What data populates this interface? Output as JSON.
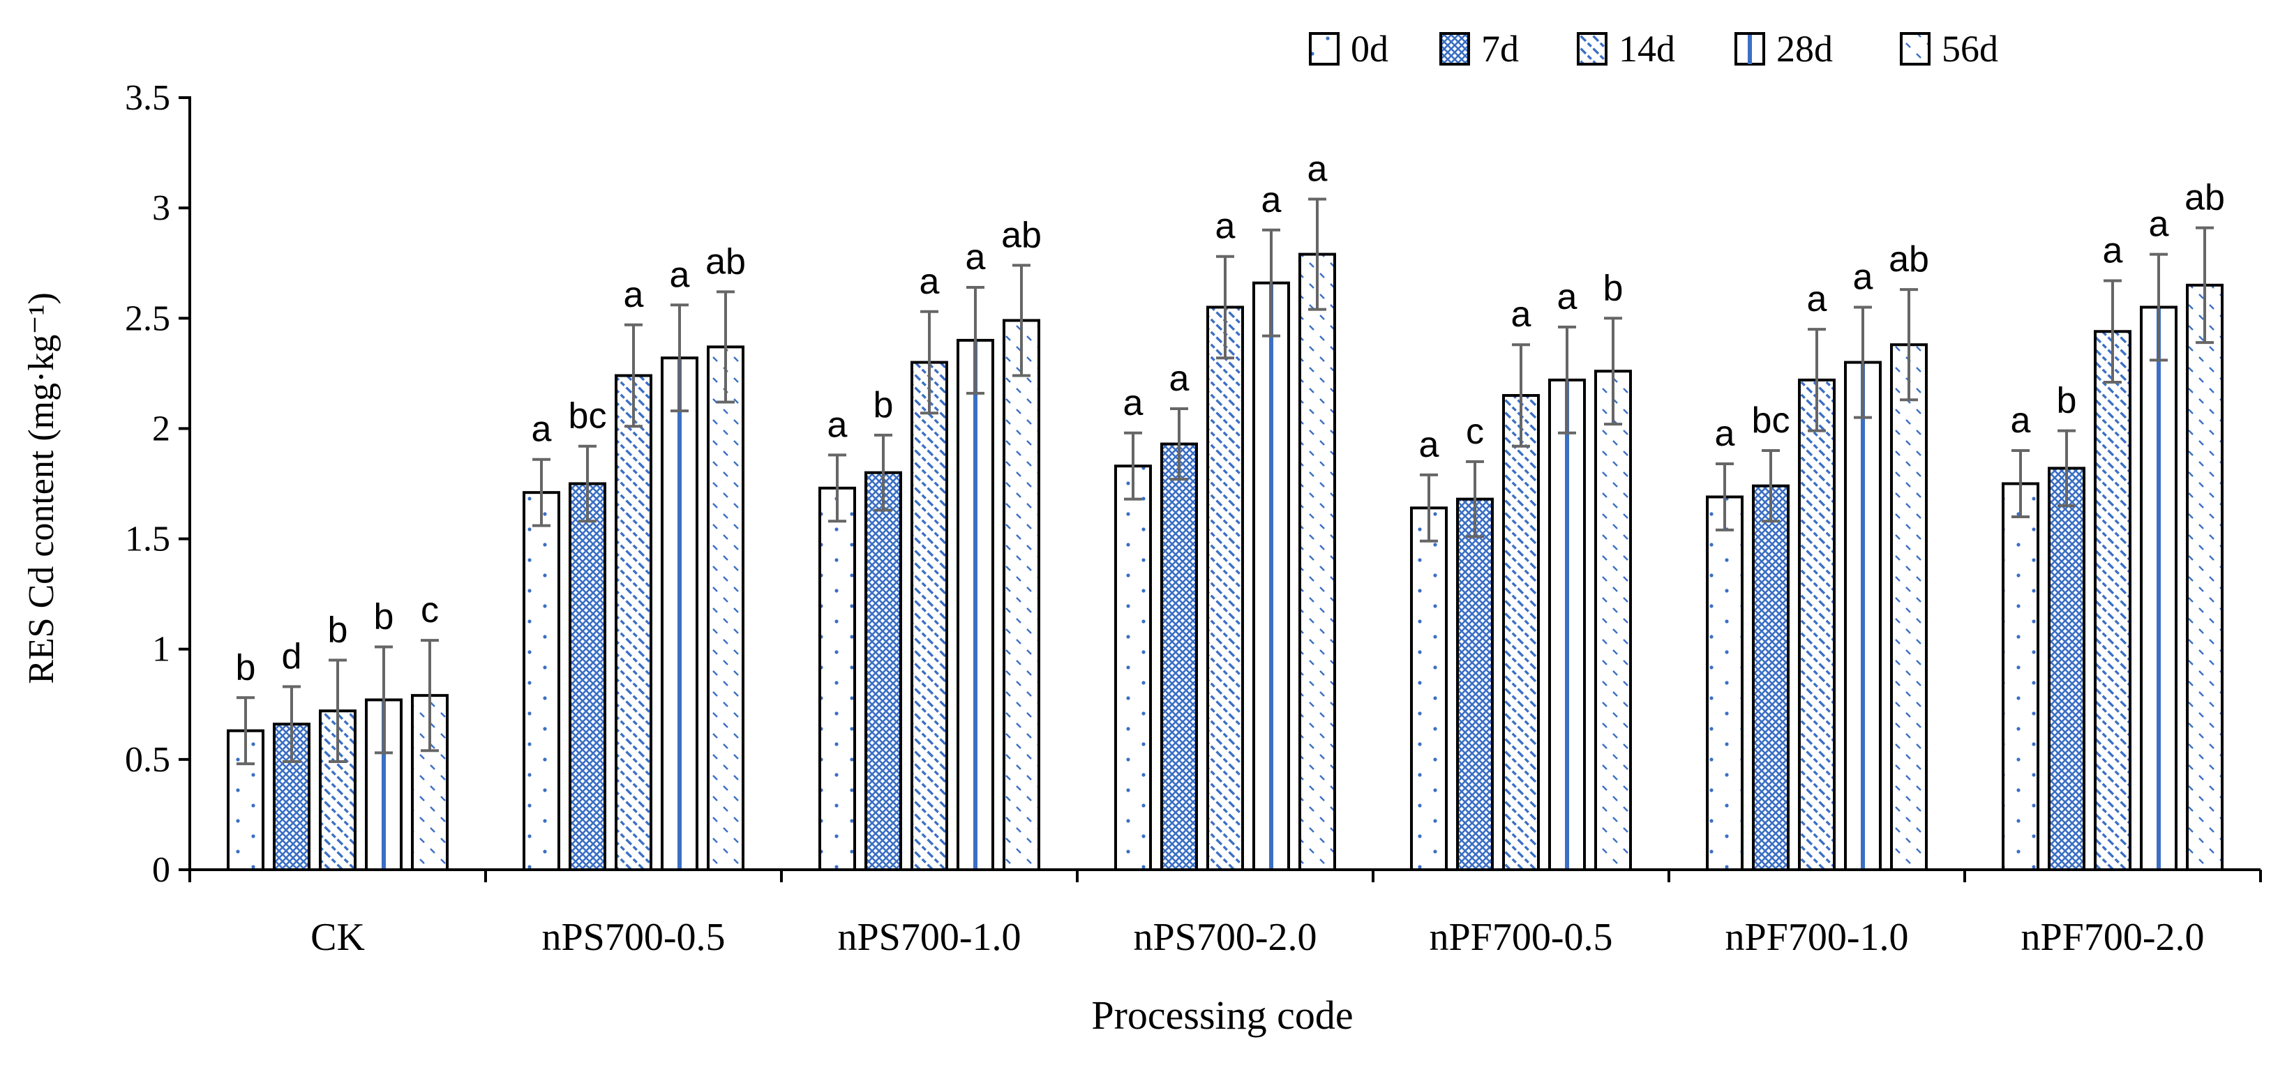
{
  "chart_data": {
    "type": "bar",
    "title": "",
    "xlabel": "Processing code",
    "ylabel": "RES Cd content (mg·kg⁻¹)",
    "ylim": [
      0,
      3.5
    ],
    "yticks": [
      "0",
      "0.5",
      "1",
      "1.5",
      "2",
      "2.5",
      "3",
      "3.5"
    ],
    "legend_position": "top-right",
    "categories": [
      "CK",
      "nPS700-0.5",
      "nPS700-1.0",
      "nPS700-2.0",
      "nPF700-0.5",
      "nPF700-1.0",
      "nPF700-2.0"
    ],
    "series": [
      {
        "name": "0d",
        "pattern": "dots",
        "values": [
          0.63,
          1.71,
          1.73,
          1.83,
          1.64,
          1.69,
          1.75
        ],
        "errors": [
          0.15,
          0.15,
          0.15,
          0.15,
          0.15,
          0.15,
          0.15
        ],
        "labels": [
          "b",
          "a",
          "a",
          "a",
          "a",
          "a",
          "a"
        ]
      },
      {
        "name": "7d",
        "pattern": "crosshatch",
        "values": [
          0.66,
          1.75,
          1.8,
          1.93,
          1.68,
          1.74,
          1.82
        ],
        "errors": [
          0.17,
          0.17,
          0.17,
          0.16,
          0.17,
          0.16,
          0.17
        ],
        "labels": [
          "d",
          "bc",
          "b",
          "a",
          "c",
          "bc",
          "b"
        ]
      },
      {
        "name": "14d",
        "pattern": "diagonal",
        "values": [
          0.72,
          2.24,
          2.3,
          2.55,
          2.15,
          2.22,
          2.44
        ],
        "errors": [
          0.23,
          0.23,
          0.23,
          0.23,
          0.23,
          0.23,
          0.23
        ],
        "labels": [
          "b",
          "a",
          "a",
          "a",
          "a",
          "a",
          "a"
        ]
      },
      {
        "name": "28d",
        "pattern": "vertical",
        "values": [
          0.77,
          2.32,
          2.4,
          2.66,
          2.22,
          2.3,
          2.55
        ],
        "errors": [
          0.24,
          0.24,
          0.24,
          0.24,
          0.24,
          0.25,
          0.24
        ],
        "labels": [
          "b",
          "a",
          "a",
          "a",
          "a",
          "a",
          "a"
        ]
      },
      {
        "name": "56d",
        "pattern": "dashes",
        "values": [
          0.79,
          2.37,
          2.49,
          2.79,
          2.26,
          2.38,
          2.65
        ],
        "errors": [
          0.25,
          0.25,
          0.25,
          0.25,
          0.24,
          0.25,
          0.26
        ],
        "labels": [
          "c",
          "ab",
          "ab",
          "a",
          "b",
          "ab",
          "ab"
        ]
      }
    ],
    "colors": {
      "bar_stroke": "#000000",
      "pattern": "#3b6fc4",
      "error_bar": "#666666",
      "axis": "#000000"
    }
  }
}
